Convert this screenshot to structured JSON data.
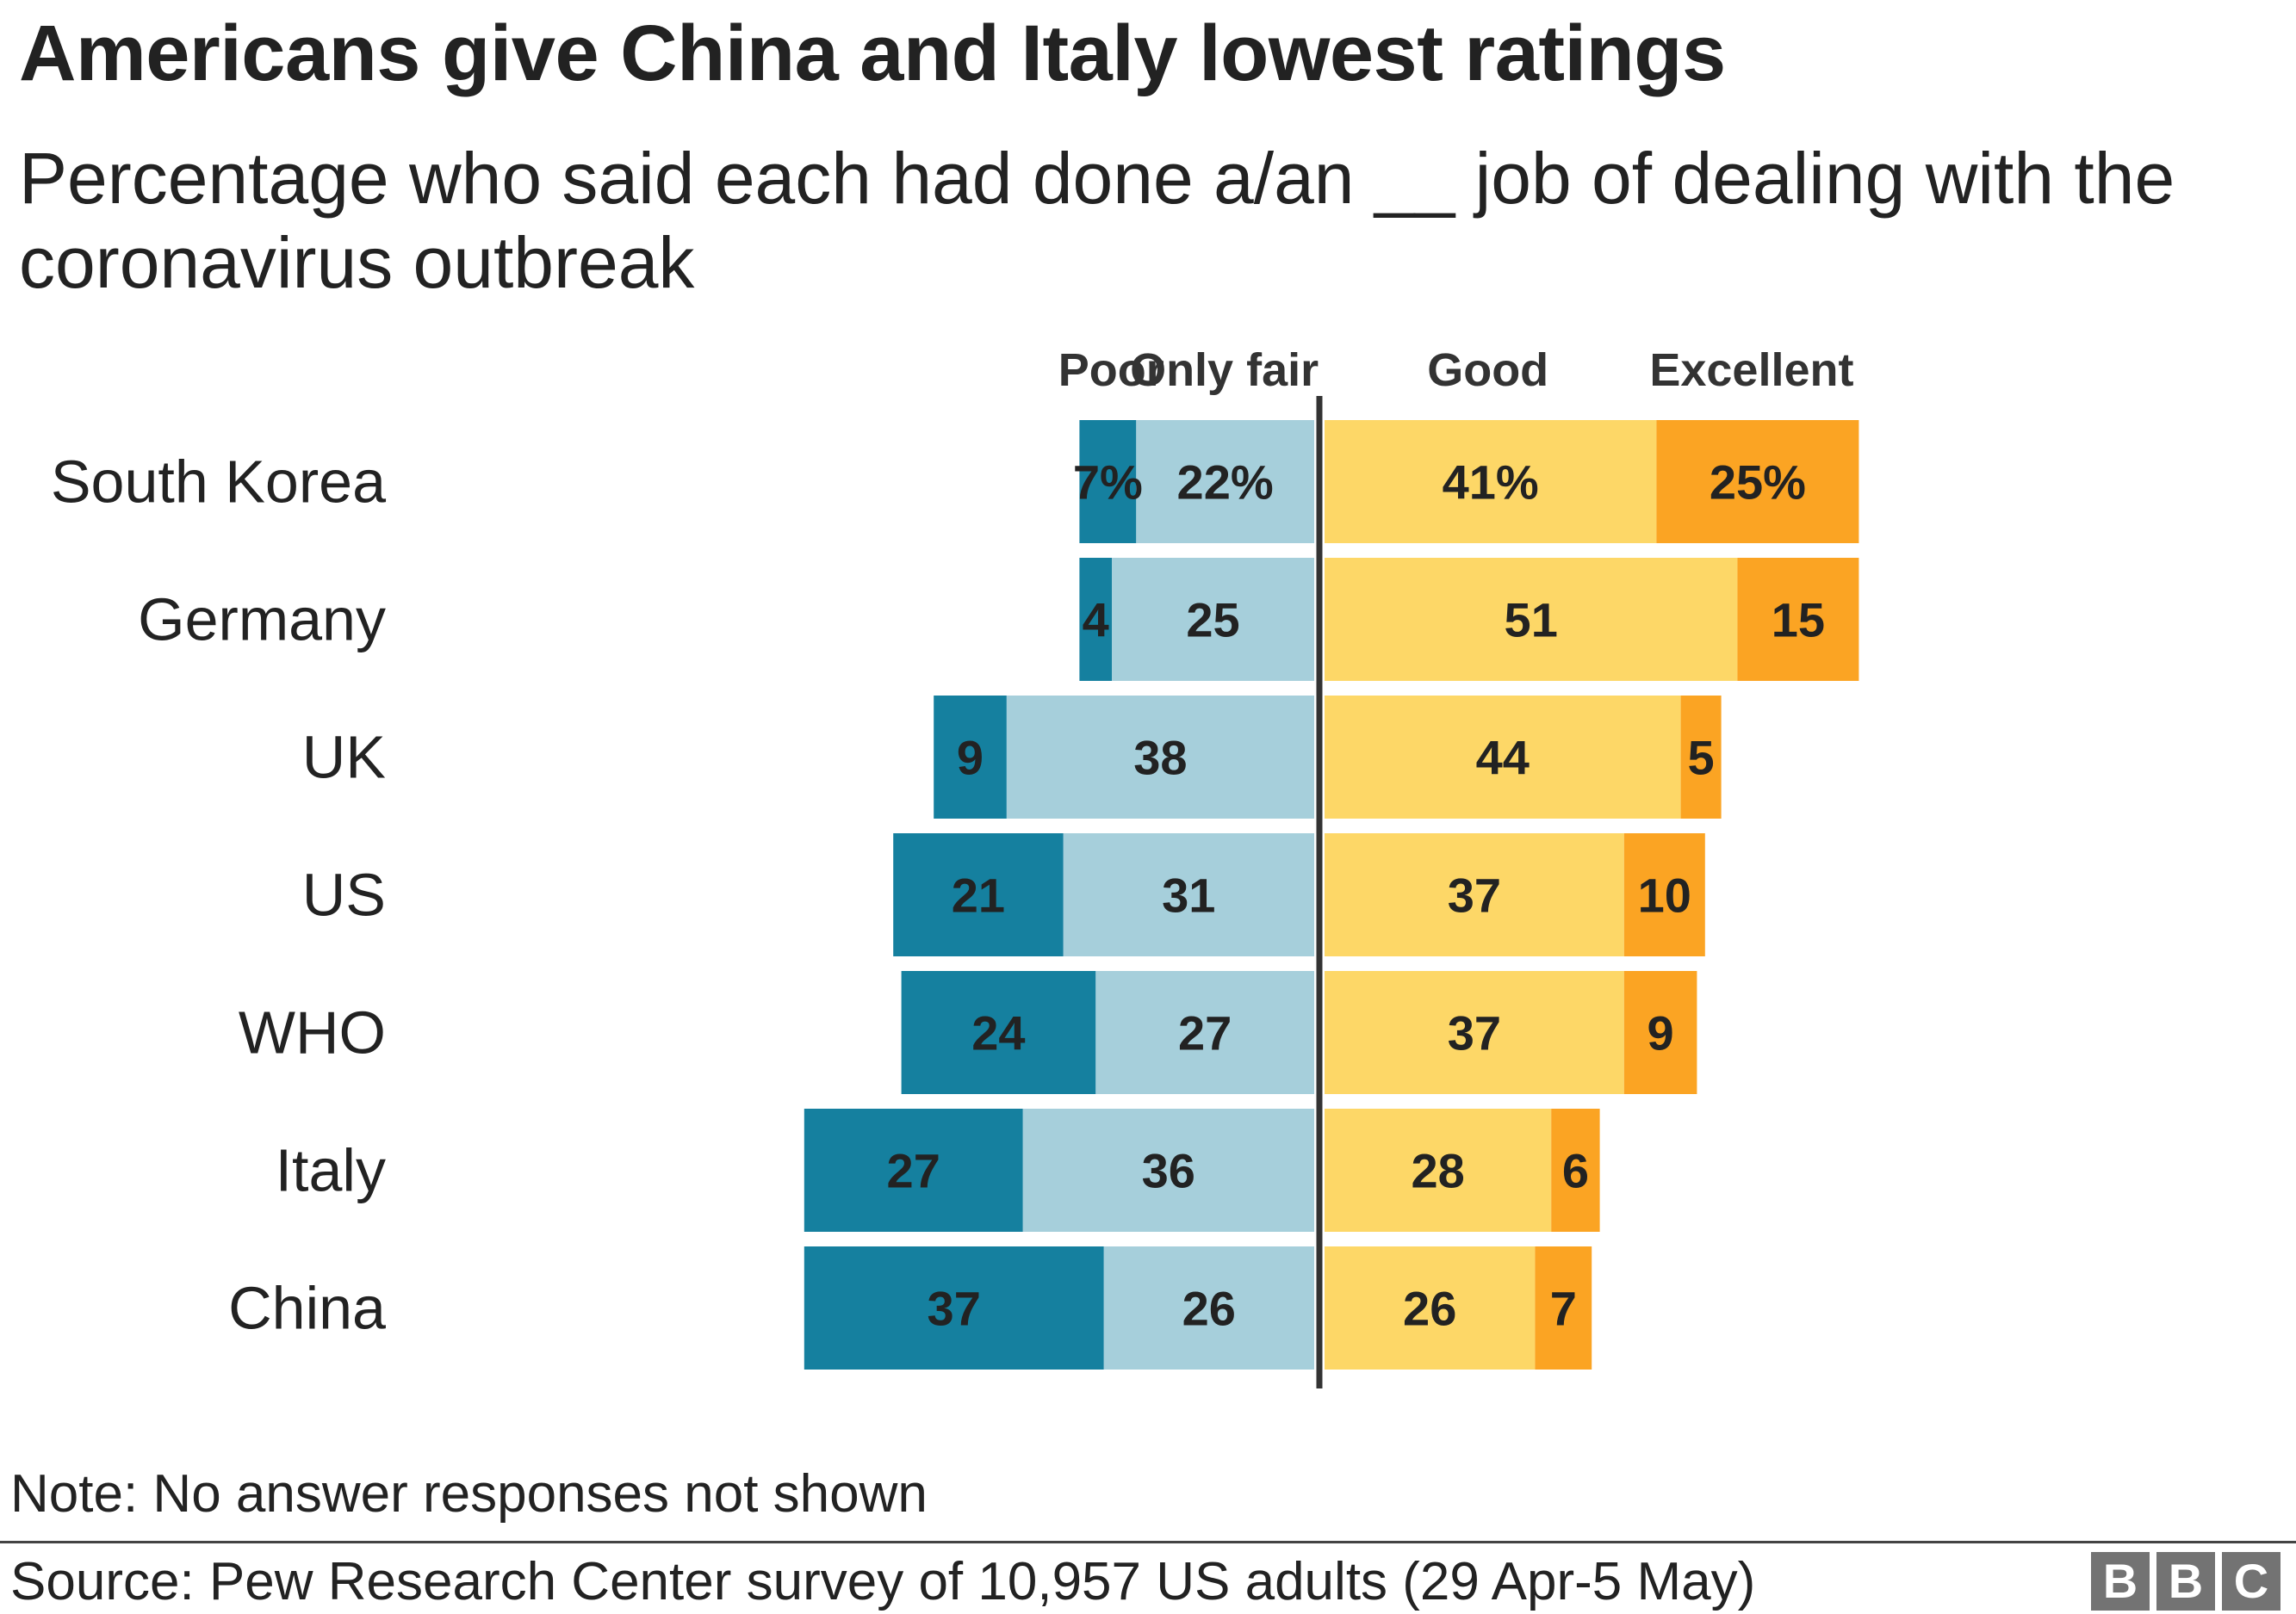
{
  "title": "Americans give China and Italy lowest ratings",
  "subtitle": "Percentage who said each had done a/an __ job of dealing with the coronavirus outbreak",
  "note": "Note: No answer responses not shown",
  "source": "Source: Pew Research Center survey of 10,957 US adults (29 Apr-5 May)",
  "logo": [
    "B",
    "B",
    "C"
  ],
  "colors": {
    "poor": "#15809f",
    "only_fair": "#a6cfdb",
    "good": "#fdd767",
    "excellent": "#fba423",
    "divider": "#333333",
    "text": "#222222"
  },
  "chart_data": {
    "type": "bar",
    "orientation": "horizontal",
    "stacking": "diverging",
    "categories": [
      "South Korea",
      "Germany",
      "UK",
      "US",
      "WHO",
      "Italy",
      "China"
    ],
    "series": [
      {
        "name": "Poor",
        "side": "negative",
        "values": [
          7,
          4,
          9,
          21,
          24,
          27,
          37
        ],
        "labels": [
          "7%",
          "4",
          "9",
          "21",
          "24",
          "27",
          "37"
        ]
      },
      {
        "name": "Only fair",
        "side": "negative",
        "values": [
          22,
          25,
          38,
          31,
          27,
          36,
          26
        ],
        "labels": [
          "22%",
          "25",
          "38",
          "31",
          "27",
          "36",
          "26"
        ]
      },
      {
        "name": "Good",
        "side": "positive",
        "values": [
          41,
          51,
          44,
          37,
          37,
          28,
          26
        ],
        "labels": [
          "41%",
          "51",
          "44",
          "37",
          "37",
          "28",
          "26"
        ]
      },
      {
        "name": "Excellent",
        "side": "positive",
        "values": [
          25,
          15,
          5,
          10,
          9,
          6,
          7
        ],
        "labels": [
          "25%",
          "15",
          "5",
          "10",
          "9",
          "6",
          "7"
        ]
      }
    ],
    "grid": false
  }
}
